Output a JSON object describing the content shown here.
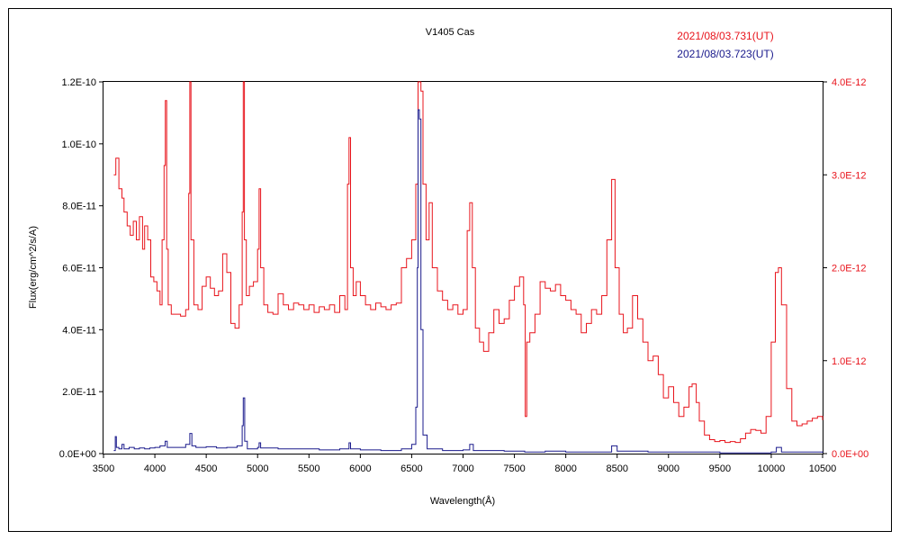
{
  "chart_data": {
    "type": "line",
    "title": "V1405 Cas",
    "xlabel": "Wavelength(Å)",
    "ylabel": "Flux(erg/cm^2/s/A)",
    "xlim": [
      3500,
      10500
    ],
    "ylim_left": [
      0,
      1.2e-10
    ],
    "ylim_right": [
      0,
      4e-12
    ],
    "x_ticks": [
      "3500",
      "4000",
      "4500",
      "5000",
      "5500",
      "6000",
      "6500",
      "7000",
      "7500",
      "8000",
      "8500",
      "9000",
      "9500",
      "10000",
      "10500"
    ],
    "y_ticks_left": [
      "0.0E+00",
      "2.0E-11",
      "4.0E-11",
      "6.0E-11",
      "8.0E-11",
      "1.0E-10",
      "1.2E-10"
    ],
    "y_ticks_right": [
      "0.0E+00",
      "1.0E-12",
      "2.0E-12",
      "3.0E-12",
      "4.0E-12"
    ],
    "grid": false,
    "legend_placement": "top-right",
    "series": [
      {
        "name": "2021/08/03.731(UT)",
        "color": "#e8141c",
        "axis": "right",
        "points": [
          [
            3600,
            3e-12
          ],
          [
            3620,
            3.18e-12
          ],
          [
            3650,
            2.85e-12
          ],
          [
            3680,
            2.75e-12
          ],
          [
            3700,
            2.6e-12
          ],
          [
            3730,
            2.45e-12
          ],
          [
            3760,
            2.35e-12
          ],
          [
            3790,
            2.5e-12
          ],
          [
            3820,
            2.3e-12
          ],
          [
            3850,
            2.55e-12
          ],
          [
            3880,
            2.2e-12
          ],
          [
            3900,
            2.45e-12
          ],
          [
            3930,
            2.3e-12
          ],
          [
            3960,
            1.9e-12
          ],
          [
            3990,
            1.85e-12
          ],
          [
            4020,
            1.75e-12
          ],
          [
            4050,
            1.6e-12
          ],
          [
            4070,
            2.3e-12
          ],
          [
            4090,
            3.1e-12
          ],
          [
            4102,
            3.8e-12
          ],
          [
            4115,
            2.2e-12
          ],
          [
            4130,
            1.6e-12
          ],
          [
            4160,
            1.5e-12
          ],
          [
            4200,
            1.5e-12
          ],
          [
            4250,
            1.48e-12
          ],
          [
            4300,
            1.55e-12
          ],
          [
            4330,
            2.8e-12
          ],
          [
            4340,
            4e-12
          ],
          [
            4352,
            2.3e-12
          ],
          [
            4380,
            1.6e-12
          ],
          [
            4420,
            1.55e-12
          ],
          [
            4460,
            1.8e-12
          ],
          [
            4500,
            1.9e-12
          ],
          [
            4540,
            1.78e-12
          ],
          [
            4580,
            1.7e-12
          ],
          [
            4620,
            1.75e-12
          ],
          [
            4660,
            2.15e-12
          ],
          [
            4700,
            1.95e-12
          ],
          [
            4740,
            1.4e-12
          ],
          [
            4780,
            1.35e-12
          ],
          [
            4820,
            1.6e-12
          ],
          [
            4850,
            2.6e-12
          ],
          [
            4861,
            4e-12
          ],
          [
            4872,
            2.3e-12
          ],
          [
            4890,
            1.7e-12
          ],
          [
            4920,
            1.8e-12
          ],
          [
            4960,
            1.85e-12
          ],
          [
            5000,
            2.2e-12
          ],
          [
            5015,
            2.85e-12
          ],
          [
            5030,
            2e-12
          ],
          [
            5060,
            1.6e-12
          ],
          [
            5100,
            1.52e-12
          ],
          [
            5150,
            1.5e-12
          ],
          [
            5200,
            1.72e-12
          ],
          [
            5250,
            1.6e-12
          ],
          [
            5300,
            1.55e-12
          ],
          [
            5350,
            1.62e-12
          ],
          [
            5400,
            1.6e-12
          ],
          [
            5450,
            1.55e-12
          ],
          [
            5500,
            1.6e-12
          ],
          [
            5550,
            1.52e-12
          ],
          [
            5600,
            1.58e-12
          ],
          [
            5650,
            1.55e-12
          ],
          [
            5700,
            1.6e-12
          ],
          [
            5750,
            1.52e-12
          ],
          [
            5800,
            1.7e-12
          ],
          [
            5850,
            1.55e-12
          ],
          [
            5875,
            2.9e-12
          ],
          [
            5890,
            3.4e-12
          ],
          [
            5905,
            2e-12
          ],
          [
            5930,
            1.7e-12
          ],
          [
            5960,
            1.85e-12
          ],
          [
            6000,
            1.7e-12
          ],
          [
            6050,
            1.6e-12
          ],
          [
            6100,
            1.55e-12
          ],
          [
            6150,
            1.62e-12
          ],
          [
            6200,
            1.58e-12
          ],
          [
            6250,
            1.55e-12
          ],
          [
            6300,
            1.6e-12
          ],
          [
            6350,
            1.62e-12
          ],
          [
            6400,
            2e-12
          ],
          [
            6450,
            2.1e-12
          ],
          [
            6500,
            2.3e-12
          ],
          [
            6540,
            2.9e-12
          ],
          [
            6562,
            4e-12
          ],
          [
            6590,
            3.9e-12
          ],
          [
            6610,
            2.9e-12
          ],
          [
            6640,
            2.3e-12
          ],
          [
            6670,
            2.7e-12
          ],
          [
            6700,
            2e-12
          ],
          [
            6750,
            1.75e-12
          ],
          [
            6800,
            1.65e-12
          ],
          [
            6850,
            1.55e-12
          ],
          [
            6900,
            1.6e-12
          ],
          [
            6950,
            1.5e-12
          ],
          [
            7000,
            1.55e-12
          ],
          [
            7040,
            2.4e-12
          ],
          [
            7065,
            2.7e-12
          ],
          [
            7090,
            2e-12
          ],
          [
            7120,
            1.35e-12
          ],
          [
            7160,
            1.2e-12
          ],
          [
            7200,
            1.1e-12
          ],
          [
            7250,
            1.3e-12
          ],
          [
            7300,
            1.55e-12
          ],
          [
            7350,
            1.4e-12
          ],
          [
            7400,
            1.45e-12
          ],
          [
            7450,
            1.65e-12
          ],
          [
            7500,
            1.8e-12
          ],
          [
            7550,
            1.9e-12
          ],
          [
            7590,
            1.6e-12
          ],
          [
            7605,
            4e-13
          ],
          [
            7620,
            1.2e-12
          ],
          [
            7650,
            1.3e-12
          ],
          [
            7700,
            1.5e-12
          ],
          [
            7750,
            1.85e-12
          ],
          [
            7800,
            1.78e-12
          ],
          [
            7850,
            1.75e-12
          ],
          [
            7900,
            1.82e-12
          ],
          [
            7950,
            1.7e-12
          ],
          [
            8000,
            1.65e-12
          ],
          [
            8050,
            1.55e-12
          ],
          [
            8100,
            1.5e-12
          ],
          [
            8150,
            1.3e-12
          ],
          [
            8200,
            1.4e-12
          ],
          [
            8250,
            1.55e-12
          ],
          [
            8300,
            1.5e-12
          ],
          [
            8350,
            1.7e-12
          ],
          [
            8400,
            2.3e-12
          ],
          [
            8446,
            2.95e-12
          ],
          [
            8480,
            2e-12
          ],
          [
            8520,
            1.5e-12
          ],
          [
            8560,
            1.3e-12
          ],
          [
            8600,
            1.35e-12
          ],
          [
            8650,
            1.7e-12
          ],
          [
            8700,
            1.45e-12
          ],
          [
            8750,
            1.2e-12
          ],
          [
            8800,
            1e-12
          ],
          [
            8850,
            1.05e-12
          ],
          [
            8900,
            8.5e-13
          ],
          [
            8950,
            6e-13
          ],
          [
            9000,
            7.2e-13
          ],
          [
            9050,
            5.5e-13
          ],
          [
            9100,
            4e-13
          ],
          [
            9150,
            5e-13
          ],
          [
            9200,
            7.2e-13
          ],
          [
            9230,
            7.5e-13
          ],
          [
            9270,
            5.5e-13
          ],
          [
            9300,
            3.5e-13
          ],
          [
            9350,
            2e-13
          ],
          [
            9400,
            1.5e-13
          ],
          [
            9450,
            1.3e-13
          ],
          [
            9500,
            1.4e-13
          ],
          [
            9550,
            1.2e-13
          ],
          [
            9600,
            1.3e-13
          ],
          [
            9650,
            1.2e-13
          ],
          [
            9700,
            1.6e-13
          ],
          [
            9750,
            2.2e-13
          ],
          [
            9800,
            2.6e-13
          ],
          [
            9850,
            2.5e-13
          ],
          [
            9900,
            2.2e-13
          ],
          [
            9950,
            4e-13
          ],
          [
            10000,
            1.2e-12
          ],
          [
            10040,
            1.95e-12
          ],
          [
            10070,
            2e-12
          ],
          [
            10100,
            1.6e-12
          ],
          [
            10150,
            7e-13
          ],
          [
            10200,
            3.5e-13
          ],
          [
            10250,
            3e-13
          ],
          [
            10300,
            3.2e-13
          ],
          [
            10350,
            3.5e-13
          ],
          [
            10400,
            3.8e-13
          ],
          [
            10450,
            4e-13
          ],
          [
            10500,
            3.6e-13
          ]
        ]
      },
      {
        "name": "2021/08/03.723(UT)",
        "color": "#1a1a8c",
        "axis": "left",
        "points": [
          [
            3600,
            1e-12
          ],
          [
            3615,
            5.5e-12
          ],
          [
            3625,
            2e-12
          ],
          [
            3650,
            1.5e-12
          ],
          [
            3680,
            3e-12
          ],
          [
            3700,
            1.5e-12
          ],
          [
            3750,
            2e-12
          ],
          [
            3800,
            1.5e-12
          ],
          [
            3850,
            1.8e-12
          ],
          [
            3900,
            1.5e-12
          ],
          [
            3950,
            1.8e-12
          ],
          [
            4000,
            2e-12
          ],
          [
            4050,
            2.5e-12
          ],
          [
            4100,
            4e-12
          ],
          [
            4120,
            2e-12
          ],
          [
            4200,
            2e-12
          ],
          [
            4300,
            3e-12
          ],
          [
            4340,
            6.5e-12
          ],
          [
            4360,
            2.5e-12
          ],
          [
            4400,
            2e-12
          ],
          [
            4500,
            2.2e-12
          ],
          [
            4600,
            1.8e-12
          ],
          [
            4700,
            2e-12
          ],
          [
            4800,
            2.5e-12
          ],
          [
            4850,
            9e-12
          ],
          [
            4861,
            1.8e-11
          ],
          [
            4875,
            4e-12
          ],
          [
            4900,
            1.5e-12
          ],
          [
            5000,
            2e-12
          ],
          [
            5015,
            3.5e-12
          ],
          [
            5030,
            1.8e-12
          ],
          [
            5200,
            1.5e-12
          ],
          [
            5400,
            1.5e-12
          ],
          [
            5600,
            1.2e-12
          ],
          [
            5800,
            1.5e-12
          ],
          [
            5890,
            3.5e-12
          ],
          [
            5905,
            1.5e-12
          ],
          [
            6000,
            1.2e-12
          ],
          [
            6200,
            1e-12
          ],
          [
            6400,
            1.5e-12
          ],
          [
            6500,
            3e-12
          ],
          [
            6540,
            1.5e-11
          ],
          [
            6555,
            6e-11
          ],
          [
            6562,
            1.11e-10
          ],
          [
            6575,
            1.08e-10
          ],
          [
            6590,
            4e-11
          ],
          [
            6610,
            6e-12
          ],
          [
            6650,
            1.5e-12
          ],
          [
            6800,
            1e-12
          ],
          [
            7000,
            1.2e-12
          ],
          [
            7065,
            3e-12
          ],
          [
            7100,
            1e-12
          ],
          [
            7400,
            8e-13
          ],
          [
            7600,
            5e-13
          ],
          [
            7800,
            8e-13
          ],
          [
            8000,
            5e-13
          ],
          [
            8200,
            5e-13
          ],
          [
            8446,
            2.5e-12
          ],
          [
            8500,
            8e-13
          ],
          [
            8800,
            5e-13
          ],
          [
            9000,
            5e-13
          ],
          [
            9500,
            2e-13
          ],
          [
            10000,
            5e-13
          ],
          [
            10050,
            2e-12
          ],
          [
            10100,
            5e-13
          ],
          [
            10300,
            5e-13
          ],
          [
            10500,
            3e-13
          ]
        ]
      }
    ]
  }
}
